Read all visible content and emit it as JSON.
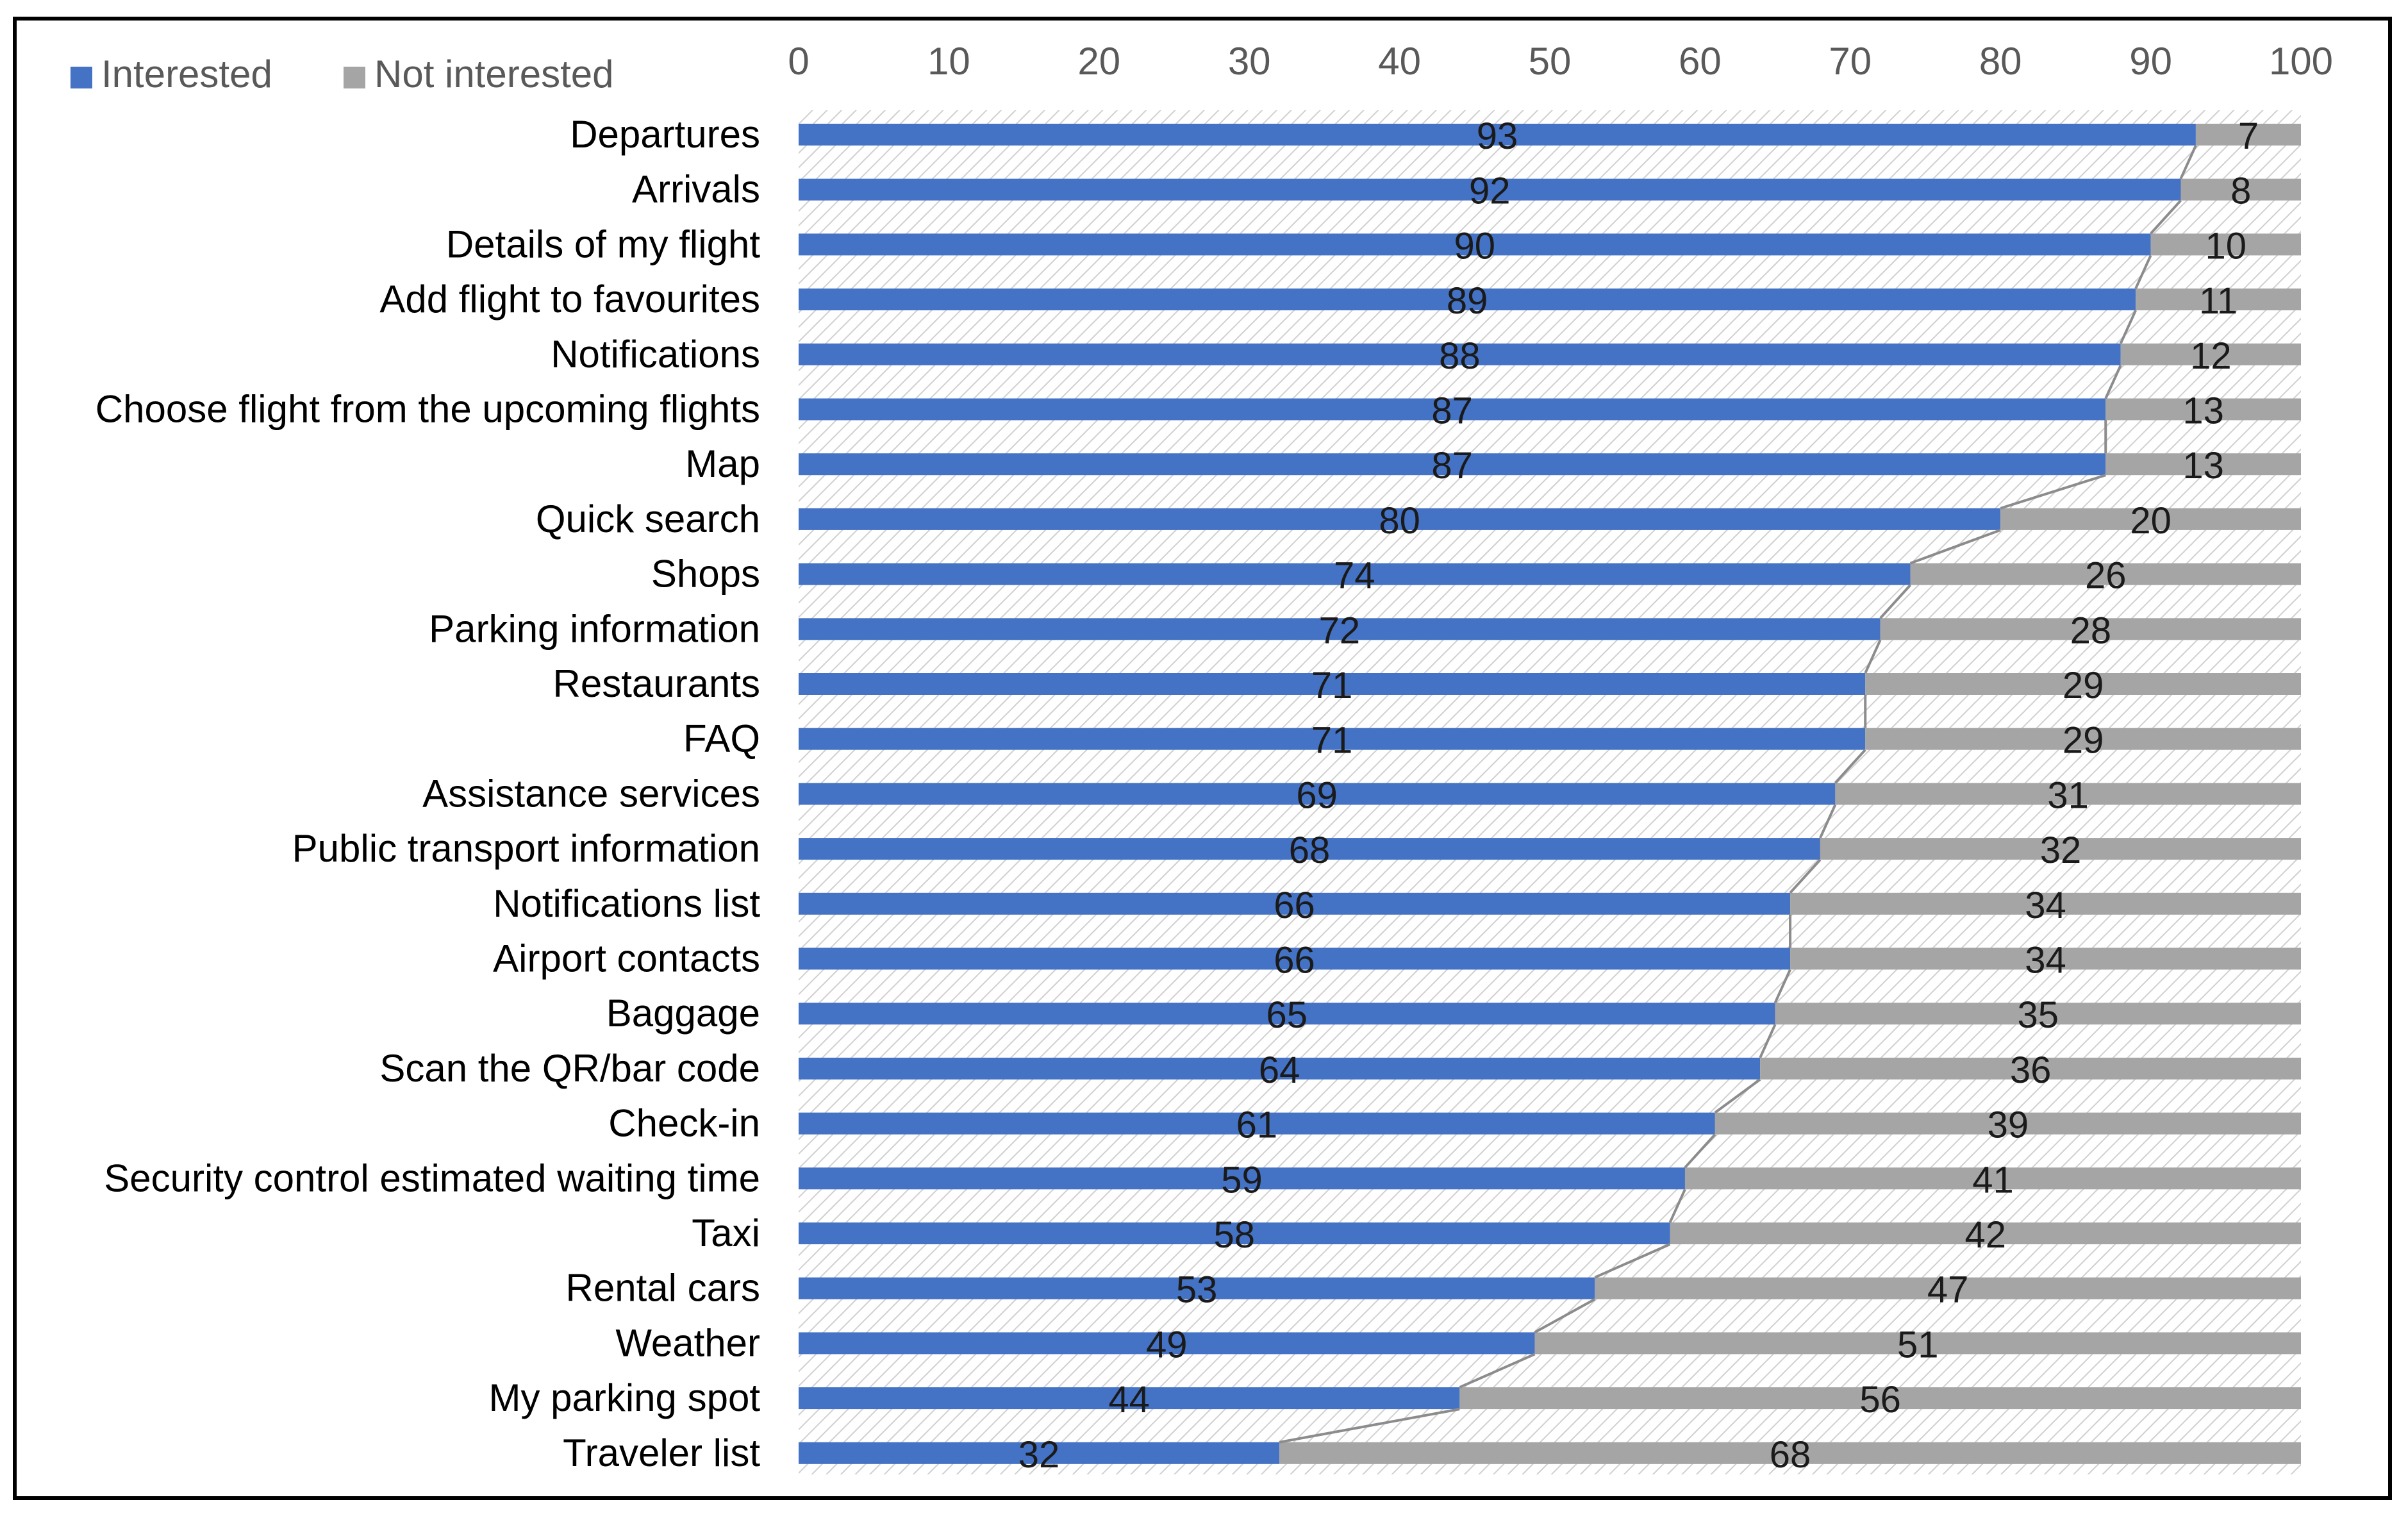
{
  "chart_data": {
    "type": "bar",
    "orientation": "horizontal",
    "stacked": true,
    "title": "",
    "xlabel": "",
    "ylabel": "",
    "xlim": [
      0,
      100
    ],
    "x_ticks": [
      0,
      10,
      20,
      30,
      40,
      50,
      60,
      70,
      80,
      90,
      100
    ],
    "x_axis_position": "top",
    "legend_position": "top-left",
    "grid": false,
    "categories": [
      "Departures",
      "Arrivals",
      "Details of my flight",
      "Add flight to favourites",
      "Notifications",
      "Choose flight from the upcoming flights",
      "Map",
      "Quick search",
      "Shops",
      "Parking information",
      "Restaurants",
      "FAQ",
      "Assistance services",
      "Public transport information",
      "Notifications list",
      "Airport contacts",
      "Baggage",
      "Scan the QR/bar code",
      "Check-in",
      "Security control estimated waiting time",
      "Taxi",
      "Rental cars",
      "Weather",
      "My parking spot",
      "Traveler list"
    ],
    "series": [
      {
        "name": "Interested",
        "color": "#4472C4",
        "values": [
          93,
          92,
          90,
          89,
          88,
          87,
          87,
          80,
          74,
          72,
          71,
          71,
          69,
          68,
          66,
          66,
          65,
          64,
          61,
          59,
          58,
          53,
          49,
          44,
          32
        ]
      },
      {
        "name": "Not interested",
        "color": "#A5A5A5",
        "values": [
          7,
          8,
          10,
          11,
          12,
          13,
          13,
          20,
          26,
          28,
          29,
          29,
          31,
          32,
          34,
          34,
          35,
          36,
          39,
          41,
          42,
          47,
          51,
          56,
          68
        ]
      }
    ],
    "series_lines": true
  }
}
